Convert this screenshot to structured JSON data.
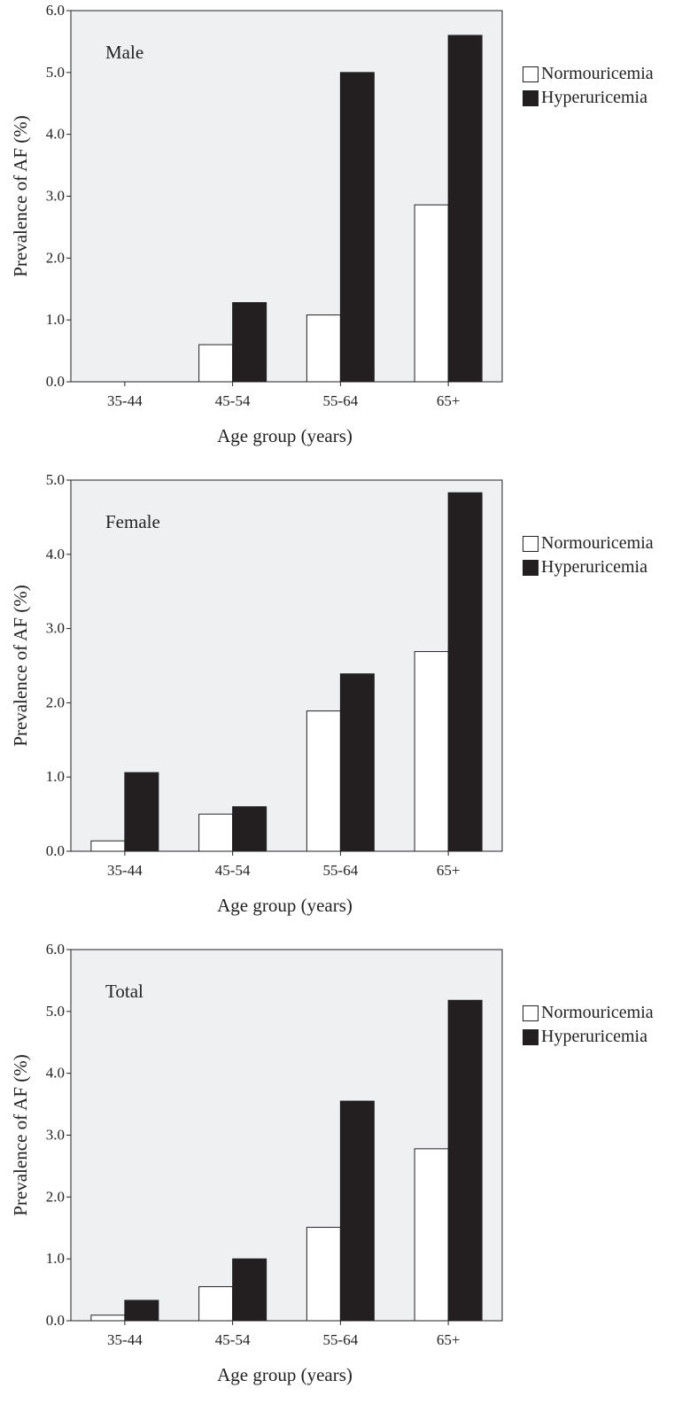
{
  "chart_data": [
    {
      "type": "bar",
      "title": "Male",
      "xlabel": "Age group (years)",
      "ylabel": "Prevalence of AF (%)",
      "categories": [
        "35-44",
        "45-54",
        "55-64",
        "65+"
      ],
      "ylim": [
        0,
        6.0
      ],
      "yticks": [
        "0.0",
        "1.0",
        "2.0",
        "3.0",
        "4.0",
        "5.0",
        "6.0"
      ],
      "series": [
        {
          "name": "Normouricemia",
          "color": "#ffffff",
          "values": [
            0.0,
            0.6,
            1.08,
            2.86
          ]
        },
        {
          "name": "Hyperuricemia",
          "color": "#231f20",
          "values": [
            0.0,
            1.28,
            5.0,
            5.6
          ]
        }
      ],
      "grid": false,
      "legend": "right",
      "background": "#eff0f2"
    },
    {
      "type": "bar",
      "title": "Female",
      "xlabel": "Age group (years)",
      "ylabel": "Prevalence of AF (%)",
      "categories": [
        "35-44",
        "45-54",
        "55-64",
        "65+"
      ],
      "ylim": [
        0,
        5.0
      ],
      "yticks": [
        "0.0",
        "1.0",
        "2.0",
        "3.0",
        "4.0",
        "5.0"
      ],
      "series": [
        {
          "name": "Normouricemia",
          "color": "#ffffff",
          "values": [
            0.14,
            0.5,
            1.89,
            2.69
          ]
        },
        {
          "name": "Hyperuricemia",
          "color": "#231f20",
          "values": [
            1.06,
            0.6,
            2.39,
            4.83
          ]
        }
      ],
      "grid": false,
      "legend": "right",
      "background": "#eff0f2"
    },
    {
      "type": "bar",
      "title": "Total",
      "xlabel": "Age group (years)",
      "ylabel": "Prevalence of AF (%)",
      "categories": [
        "35-44",
        "45-54",
        "55-64",
        "65+"
      ],
      "ylim": [
        0,
        6.0
      ],
      "yticks": [
        "0.0",
        "1.0",
        "2.0",
        "3.0",
        "4.0",
        "5.0",
        "6.0"
      ],
      "series": [
        {
          "name": "Normouricemia",
          "color": "#ffffff",
          "values": [
            0.09,
            0.55,
            1.51,
            2.78
          ]
        },
        {
          "name": "Hyperuricemia",
          "color": "#231f20",
          "values": [
            0.33,
            1.0,
            3.55,
            5.18
          ]
        }
      ],
      "grid": false,
      "legend": "right",
      "background": "#eff0f2"
    }
  ]
}
